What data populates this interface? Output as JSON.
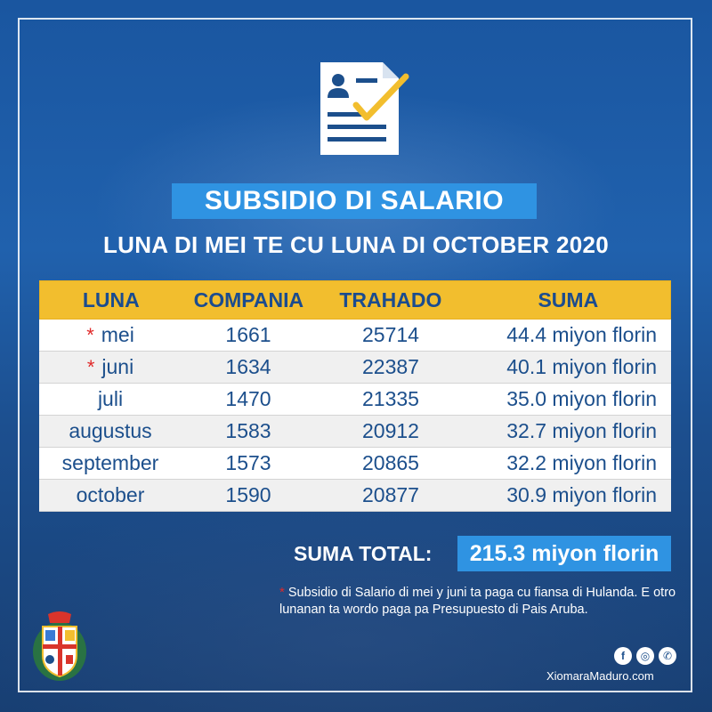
{
  "title": "SUBSIDIO DI SALARIO",
  "subtitle": "LUNA DI MEI TE CU LUNA DI OCTOBER 2020",
  "table": {
    "headers": [
      "LUNA",
      "COMPANIA",
      "TRAHADO",
      "SUMA"
    ],
    "rows": [
      {
        "luna": "mei",
        "compania": "1661",
        "trahado": "25714",
        "suma": "44.4 miyon florin",
        "starred": true
      },
      {
        "luna": "juni",
        "compania": "1634",
        "trahado": "22387",
        "suma": "40.1 miyon florin",
        "starred": true
      },
      {
        "luna": "juli",
        "compania": "1470",
        "trahado": "21335",
        "suma": "35.0 miyon florin",
        "starred": false
      },
      {
        "luna": "augustus",
        "compania": "1583",
        "trahado": "20912",
        "suma": "32.7 miyon florin",
        "starred": false
      },
      {
        "luna": "september",
        "compania": "1573",
        "trahado": "20865",
        "suma": "32.2 miyon florin",
        "starred": false
      },
      {
        "luna": "october",
        "compania": "1590",
        "trahado": "20877",
        "suma": "30.9 miyon florin",
        "starred": false
      }
    ]
  },
  "total": {
    "label": "SUMA TOTAL:",
    "value": "215.3 miyon florin"
  },
  "footnote": {
    "star": "*",
    "text": "Subsidio di Salario di mei y juni ta paga cu fiansa di Hulanda. E otro lunanan ta wordo paga pa Presupuesto di Pais Aruba."
  },
  "social": {
    "icons": [
      "facebook-icon",
      "instagram-icon",
      "whatsapp-icon"
    ],
    "facebook_glyph": "f",
    "instagram_glyph": "◎",
    "whatsapp_glyph": "✆"
  },
  "website": "XiomaraMaduro.com",
  "colors": {
    "background": "#1d4f8c",
    "banner": "#2f93e2",
    "table_header": "#f2be2e",
    "header_text": "#1b4c8f",
    "star": "#e02929"
  }
}
